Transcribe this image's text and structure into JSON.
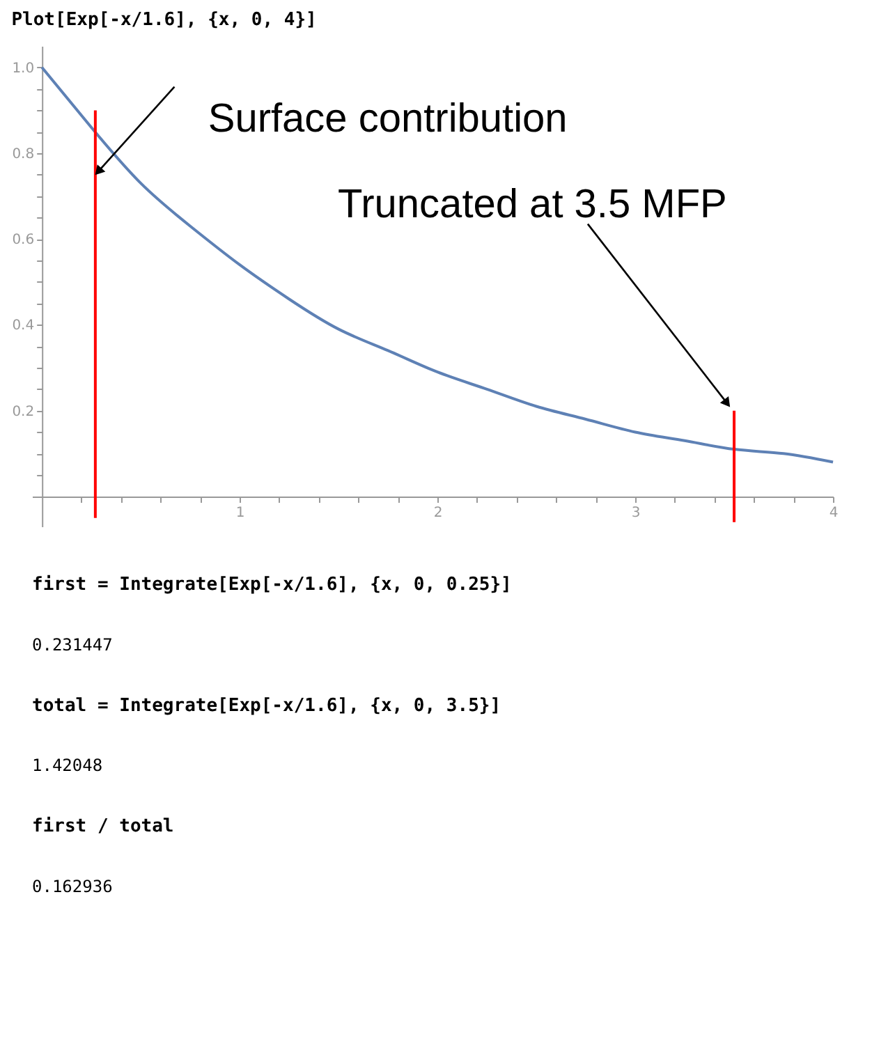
{
  "chart_data": {
    "type": "line",
    "title": "Plot[Exp[-x/1.6], {x, 0, 4}]",
    "series": [
      {
        "color": "#5e81b5",
        "x": [
          0,
          0.25,
          0.5,
          0.75,
          1,
          1.25,
          1.5,
          1.75,
          2,
          2.25,
          2.5,
          2.75,
          3,
          3.25,
          3.5,
          3.75,
          4
        ],
        "values": [
          1.0,
          0.86,
          0.73,
          0.63,
          0.54,
          0.46,
          0.39,
          0.34,
          0.29,
          0.25,
          0.21,
          0.18,
          0.15,
          0.13,
          0.11,
          0.1,
          0.08
        ]
      },
      {
        "color": "#ff0000",
        "x": [
          0.27,
          0.27
        ],
        "values": [
          -0.05,
          0.9
        ]
      },
      {
        "color": "#ff0000",
        "x": [
          3.5,
          3.5
        ],
        "values": [
          -0.06,
          0.2
        ]
      }
    ],
    "xlim": [
      -0.05,
      4.0
    ],
    "ylim": [
      -0.07,
      1.05
    ],
    "xticks": [
      {
        "value": 0.2,
        "label": null
      },
      {
        "value": 0.4,
        "label": null
      },
      {
        "value": 0.6,
        "label": null
      },
      {
        "value": 0.8,
        "label": null
      },
      1,
      {
        "value": 1.2,
        "label": null
      },
      {
        "value": 1.4,
        "label": null
      },
      {
        "value": 1.6,
        "label": null
      },
      {
        "value": 1.8,
        "label": null
      },
      2,
      {
        "value": 2.2,
        "label": null
      },
      {
        "value": 2.4,
        "label": null
      },
      {
        "value": 2.6,
        "label": null
      },
      {
        "value": 2.8,
        "label": null
      },
      3,
      {
        "value": 3.2,
        "label": null
      },
      {
        "value": 3.4,
        "label": null
      },
      {
        "value": 3.6,
        "label": null
      },
      {
        "value": 3.8,
        "label": null
      },
      4
    ],
    "yticks": [
      {
        "value": 0.05,
        "label": null
      },
      {
        "value": 0.1,
        "label": null
      },
      {
        "value": 0.15,
        "label": null
      },
      0.2,
      {
        "value": 0.25,
        "label": null
      },
      {
        "value": 0.3,
        "label": null
      },
      {
        "value": 0.35,
        "label": null
      },
      0.4,
      {
        "value": 0.45,
        "label": null
      },
      {
        "value": 0.5,
        "label": null
      },
      {
        "value": 0.55,
        "label": null
      },
      0.6,
      {
        "value": 0.65,
        "label": null
      },
      {
        "value": 0.7,
        "label": null
      },
      {
        "value": 0.75,
        "label": null
      },
      0.8,
      {
        "value": 0.85,
        "label": null
      },
      {
        "value": 0.9,
        "label": null
      },
      {
        "value": 0.95,
        "label": null
      },
      {
        "value": 1,
        "label": "1.0"
      }
    ],
    "grid": false,
    "line_style": "solid",
    "marker": "none",
    "annotations": [
      {
        "text": "Surface contribution",
        "x": 0.27,
        "y": 0.75
      },
      {
        "text": "Truncated at 3.5 MFP",
        "x": 3.46,
        "y": 0.22
      },
      "first = Integrate[Exp[-x/1.6], {x, 0, 0.25}]",
      "0.231447",
      "total = Integrate[Exp[-x/1.6], {x, 0, 3.5}]",
      "1.42048",
      "first / total",
      "0.162936"
    ]
  }
}
